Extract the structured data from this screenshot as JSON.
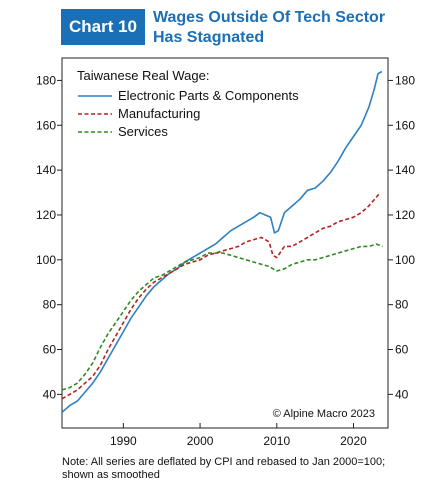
{
  "header": {
    "badge": "Chart 10",
    "title_line1": "Wages Outside Of Tech Sector",
    "title_line2": "Has Stagnated"
  },
  "footnote": {
    "line1": "Note: All series are deflated by CPI and rebased to Jan 2000=100;",
    "line2": "shown as smoothed"
  },
  "colors": {
    "brand": "#1b6fb5",
    "electronic": "#2f7fc1",
    "manufacturing": "#b22323",
    "services": "#2e8b1f"
  },
  "chart_data": {
    "type": "line",
    "legend_title": "Taiwanese Real Wage:",
    "legend_position": "top-left",
    "credit": "© Alpine Macro 2023",
    "xlim": [
      1982,
      2024.5
    ],
    "ylim": [
      25,
      190
    ],
    "x_ticks": [
      1990,
      2000,
      2010,
      2020
    ],
    "y_ticks": [
      40,
      60,
      80,
      100,
      120,
      140,
      160,
      180
    ],
    "grid": false,
    "series": [
      {
        "name": "Electronic Parts & Components",
        "style": "solid",
        "color": "#2f7fc1",
        "x": [
          1982,
          1983,
          1984,
          1985,
          1986,
          1987,
          1988,
          1989,
          1990,
          1991,
          1992,
          1993,
          1994,
          1995,
          1996,
          1997,
          1998,
          1999,
          2000,
          2001,
          2002,
          2003,
          2004,
          2005,
          2006,
          2007,
          2007.8,
          2008.5,
          2009.2,
          2009.7,
          2010.2,
          2011,
          2012,
          2013,
          2014,
          2015,
          2016,
          2017,
          2018,
          2019,
          2020,
          2021,
          2022,
          2022.7,
          2023.2,
          2023.7
        ],
        "y": [
          32,
          35,
          37,
          41,
          45,
          50,
          56,
          62,
          68,
          74,
          79,
          84,
          88,
          91,
          94,
          96,
          99,
          101,
          103,
          105,
          107,
          110,
          113,
          115,
          117,
          119,
          121,
          120,
          119,
          112,
          113,
          121,
          124,
          127,
          131,
          132,
          135,
          139,
          144,
          150,
          155,
          160,
          168,
          176,
          183,
          184
        ]
      },
      {
        "name": "Manufacturing",
        "style": "dashed",
        "color": "#b22323",
        "x": [
          1982,
          1983,
          1984,
          1985,
          1986,
          1987,
          1988,
          1989,
          1990,
          1991,
          1992,
          1993,
          1994,
          1995,
          1996,
          1997,
          1998,
          1999,
          2000,
          2001,
          2002,
          2003,
          2004,
          2005,
          2006,
          2007,
          2008,
          2009,
          2009.5,
          2010,
          2011,
          2012,
          2013,
          2014,
          2015,
          2016,
          2017,
          2018,
          2019,
          2020,
          2021,
          2022,
          2023,
          2023.5
        ],
        "y": [
          38,
          40,
          42,
          45,
          48,
          53,
          60,
          66,
          72,
          78,
          83,
          87,
          90,
          92,
          94,
          96,
          98,
          99,
          100,
          102,
          103,
          104,
          105,
          106,
          108,
          109,
          110,
          108,
          102,
          101,
          106,
          106,
          108,
          110,
          112,
          114,
          115,
          117,
          118,
          119,
          121,
          124,
          128,
          130
        ]
      },
      {
        "name": "Services",
        "style": "dashed",
        "color": "#2e8b1f",
        "x": [
          1982,
          1983,
          1984,
          1985,
          1986,
          1987,
          1988,
          1989,
          1990,
          1991,
          1992,
          1993,
          1994,
          1995,
          1996,
          1997,
          1998,
          1999,
          2000,
          2001,
          2002,
          2003,
          2004,
          2005,
          2006,
          2007,
          2008,
          2009,
          2010,
          2011,
          2012,
          2013,
          2014,
          2015,
          2016,
          2017,
          2018,
          2019,
          2020,
          2021,
          2022,
          2023,
          2023.8
        ],
        "y": [
          42,
          43,
          45,
          49,
          54,
          61,
          67,
          72,
          77,
          82,
          86,
          89,
          92,
          93,
          95,
          97,
          99,
          100,
          101,
          103,
          103,
          103,
          102,
          101,
          100,
          99,
          98,
          97,
          95,
          96,
          98,
          99,
          100,
          100,
          101,
          102,
          103,
          104,
          105,
          106,
          106,
          107,
          106
        ]
      }
    ]
  }
}
